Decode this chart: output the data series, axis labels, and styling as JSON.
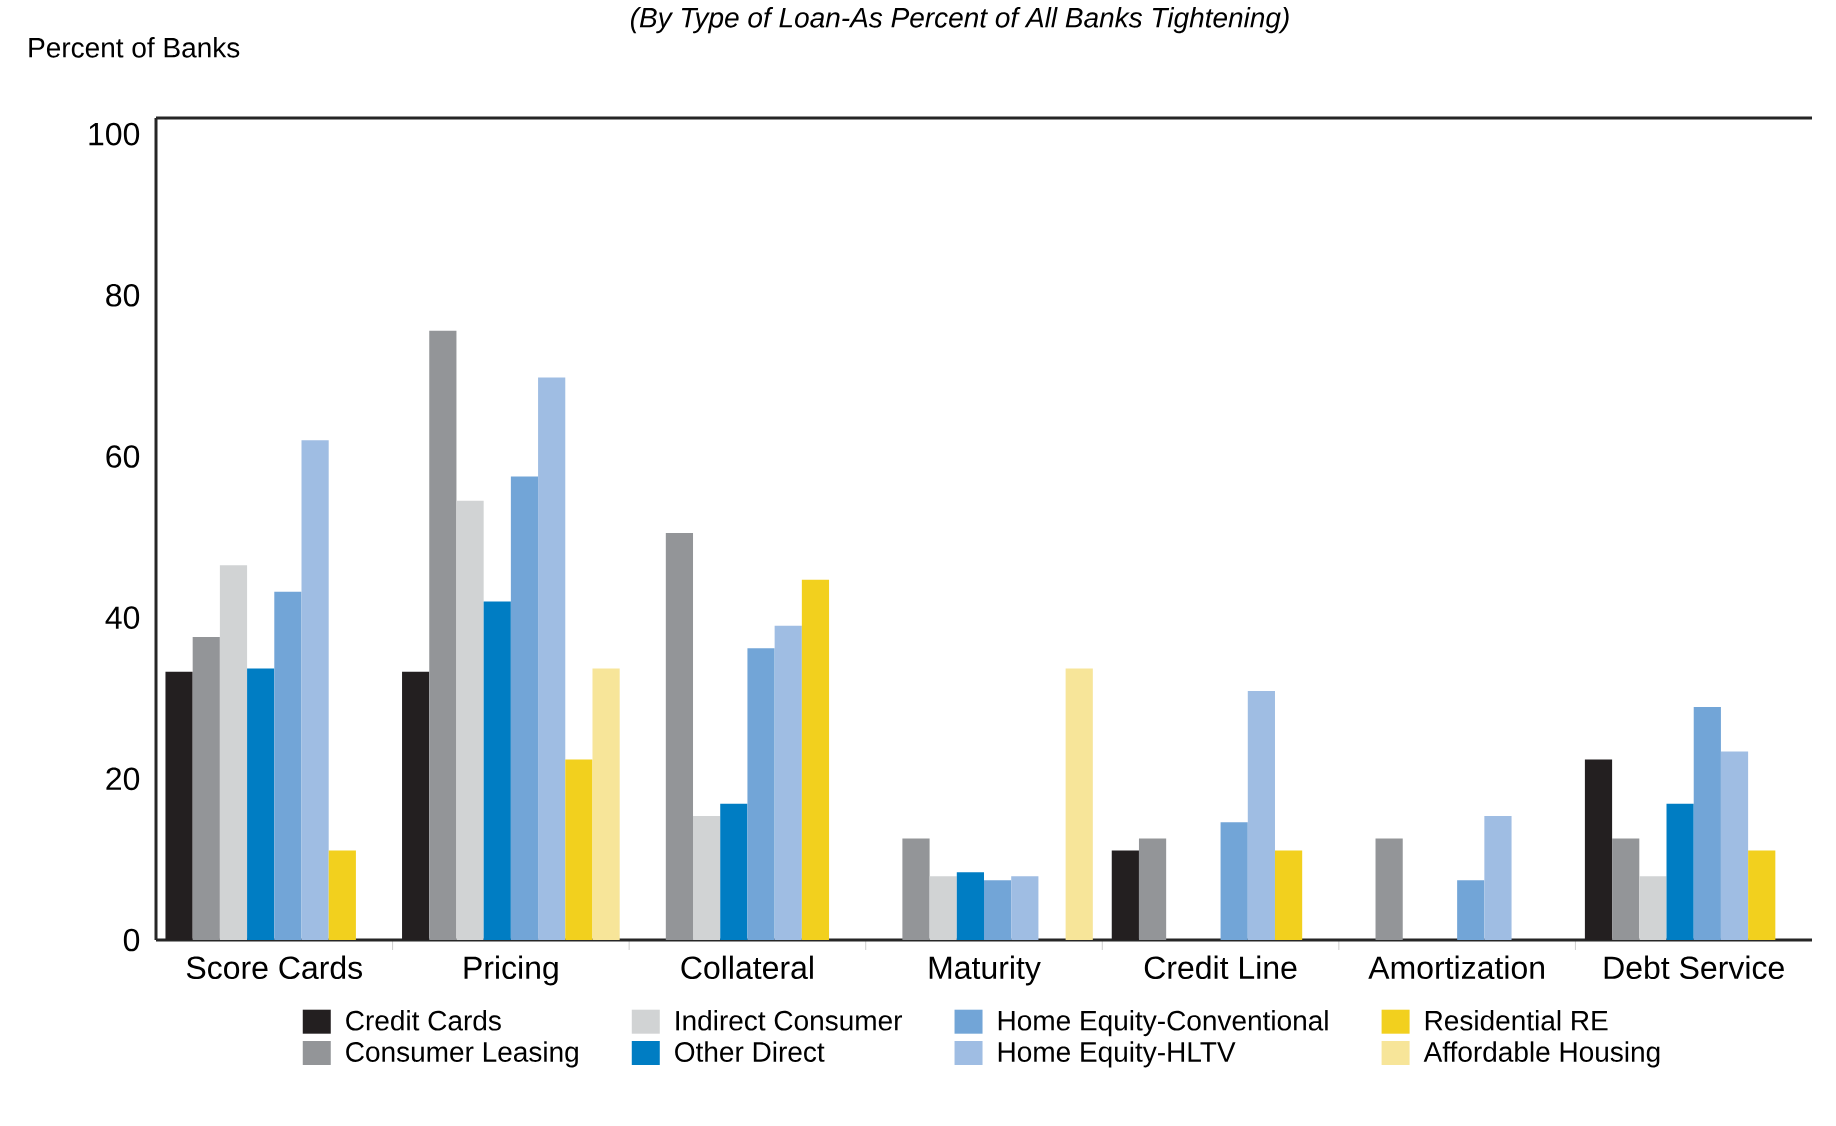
{
  "chart_data": {
    "type": "bar",
    "subtitle": "(By Type of Loan-As Percent of All Banks Tightening)",
    "ylabel": "Percent of Banks",
    "categories": [
      "Score Cards",
      "Pricing",
      "Collateral",
      "Maturity",
      "Credit Line",
      "Amortization",
      "Debt Service"
    ],
    "series": [
      {
        "name": "Credit Cards",
        "color": "#231f20",
        "values": [
          33.3,
          33.3,
          null,
          null,
          11.1,
          null,
          22.4
        ]
      },
      {
        "name": "Consumer Leasing",
        "color": "#939598",
        "values": [
          37.6,
          75.6,
          50.5,
          12.6,
          12.6,
          12.6,
          12.6
        ]
      },
      {
        "name": "Indirect Consumer",
        "color": "#d1d3d4",
        "values": [
          46.5,
          54.5,
          15.4,
          7.9,
          null,
          null,
          7.9
        ]
      },
      {
        "name": "Other Direct",
        "color": "#007dc3",
        "values": [
          33.7,
          42.0,
          16.9,
          8.4,
          null,
          null,
          16.9
        ]
      },
      {
        "name": "Home Equity-Conventional",
        "color": "#72a5d7",
        "values": [
          43.2,
          57.5,
          36.2,
          7.4,
          14.6,
          7.4,
          28.9
        ]
      },
      {
        "name": "Home Equity-HLTV",
        "color": "#9fbde3",
        "values": [
          62.0,
          69.8,
          39.0,
          7.9,
          30.9,
          15.4,
          23.4
        ]
      },
      {
        "name": "Residential RE",
        "color": "#f2d01e",
        "values": [
          11.1,
          22.4,
          44.7,
          null,
          11.1,
          null,
          11.1
        ]
      },
      {
        "name": "Affordable Housing",
        "color": "#f7e599",
        "values": [
          null,
          33.7,
          null,
          33.7,
          null,
          null,
          null
        ]
      }
    ],
    "ylim": [
      0,
      102
    ],
    "yticks": [
      0,
      20,
      40,
      60,
      80,
      100
    ],
    "grid": false,
    "legend": "bottom"
  }
}
